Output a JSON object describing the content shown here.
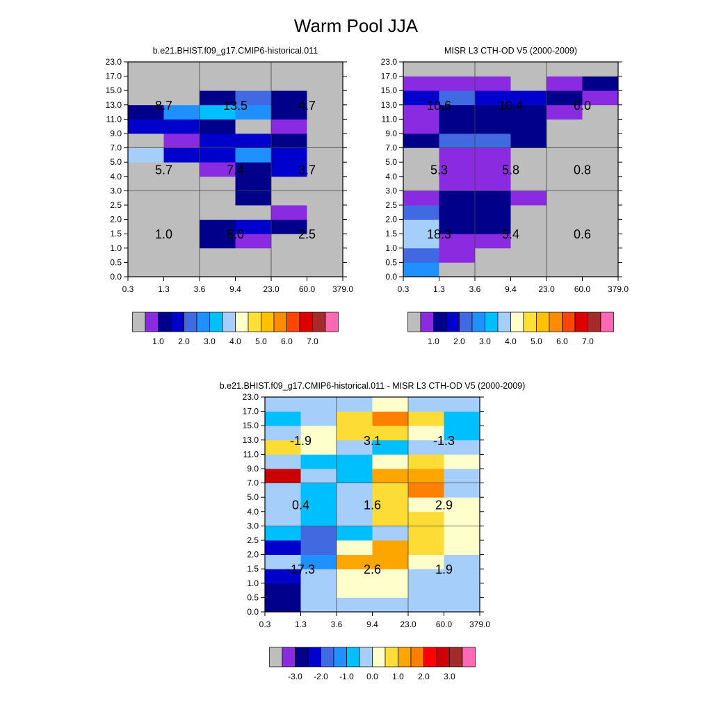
{
  "title": "Warm Pool JJA",
  "palettes": {
    "main": [
      "#bdbdbd",
      "#8a2be2",
      "#00008b",
      "#0000cd",
      "#4169e1",
      "#1e90ff",
      "#00bfff",
      "#a6cefa",
      "#ffffcc",
      "#ffe135",
      "#ffc000",
      "#ff8c00",
      "#ff4500",
      "#dd0000",
      "#a52a2a",
      "#ff69b4"
    ],
    "diff": [
      "#bdbdbd",
      "#8a2be2",
      "#00008b",
      "#0000cd",
      "#4169e1",
      "#1e90ff",
      "#00bfff",
      "#a6cefa",
      "#ffffcc",
      "#fddc35",
      "#ffa500",
      "#ff7f00",
      "#ff0000",
      "#cc0000",
      "#a52a2a",
      "#ff69b4"
    ]
  },
  "chart_data": [
    {
      "type": "heatmap",
      "title": "b.e21.BHIST.f09_g17.CMIP6-historical.011",
      "x_ticks": [
        "0.3",
        "1.3",
        "3.6",
        "9.4",
        "23.0",
        "60.0",
        "379.0"
      ],
      "y_ticks": [
        "0.0",
        "0.5",
        "1.0",
        "1.5",
        "2.0",
        "2.5",
        "3.0",
        "4.0",
        "5.0",
        "7.0",
        "9.0",
        "11.0",
        "13.0",
        "15.0",
        "17.0",
        "23.0"
      ],
      "colorbar_ticks": [
        "1.0",
        "2.0",
        "3.0",
        "4.0",
        "5.0",
        "6.0",
        "7.0"
      ],
      "cells": [
        [
          0,
          0,
          0,
          0,
          0,
          0
        ],
        [
          0,
          0,
          0,
          0,
          0,
          0
        ],
        [
          0,
          0,
          2,
          1,
          0,
          0
        ],
        [
          0,
          0,
          2,
          3,
          2,
          0
        ],
        [
          0,
          0,
          0,
          0,
          1,
          0
        ],
        [
          0,
          0,
          0,
          2,
          0,
          0
        ],
        [
          0,
          0,
          0,
          2,
          0,
          0
        ],
        [
          0,
          0,
          1,
          2,
          3,
          0
        ],
        [
          7,
          3,
          3,
          5,
          3,
          0
        ],
        [
          0,
          1,
          3,
          3,
          2,
          0
        ],
        [
          3,
          3,
          2,
          0,
          1,
          0
        ],
        [
          2,
          5,
          6,
          5,
          2,
          0
        ],
        [
          0,
          0,
          2,
          4,
          2,
          0
        ],
        [
          0,
          0,
          0,
          0,
          0,
          0
        ],
        [
          0,
          0,
          0,
          0,
          0,
          0
        ]
      ],
      "region_labels": [
        {
          "text": "8.7",
          "x": 0.5,
          "y": 12
        },
        {
          "text": "13.5",
          "x": 2.5,
          "y": 12
        },
        {
          "text": "4.7",
          "x": 4.5,
          "y": 12
        },
        {
          "text": "5.7",
          "x": 0.5,
          "y": 7.5
        },
        {
          "text": "7.4",
          "x": 2.5,
          "y": 7.5
        },
        {
          "text": "3.7",
          "x": 4.5,
          "y": 7.5
        },
        {
          "text": "1.0",
          "x": 0.5,
          "y": 3
        },
        {
          "text": "8.0",
          "x": 2.5,
          "y": 3
        },
        {
          "text": "2.5",
          "x": 4.5,
          "y": 3
        }
      ]
    },
    {
      "type": "heatmap",
      "title": "MISR L3 CTH-OD V5 (2000-2009)",
      "x_ticks": [
        "0.3",
        "1.3",
        "3.6",
        "9.4",
        "23.0",
        "60.0",
        "379.0"
      ],
      "y_ticks": [
        "0.0",
        "0.5",
        "1.0",
        "1.5",
        "2.0",
        "2.5",
        "3.0",
        "4.0",
        "5.0",
        "7.0",
        "9.0",
        "11.0",
        "13.0",
        "15.0",
        "17.0",
        "23.0"
      ],
      "colorbar_ticks": [
        "1.0",
        "2.0",
        "3.0",
        "4.0",
        "5.0",
        "6.0",
        "7.0"
      ],
      "cells": [
        [
          5,
          0,
          0,
          0,
          0,
          0
        ],
        [
          4,
          1,
          0,
          0,
          0,
          0
        ],
        [
          7,
          1,
          1,
          0,
          0,
          0
        ],
        [
          7,
          2,
          2,
          0,
          0,
          0
        ],
        [
          4,
          2,
          2,
          0,
          0,
          0
        ],
        [
          1,
          2,
          2,
          1,
          0,
          0
        ],
        [
          0,
          1,
          1,
          0,
          0,
          0
        ],
        [
          0,
          1,
          1,
          0,
          0,
          0
        ],
        [
          0,
          1,
          1,
          0,
          0,
          0
        ],
        [
          2,
          4,
          4,
          2,
          0,
          0
        ],
        [
          1,
          2,
          2,
          2,
          0,
          0
        ],
        [
          1,
          2,
          2,
          2,
          1,
          0
        ],
        [
          3,
          4,
          3,
          3,
          2,
          1
        ],
        [
          1,
          1,
          1,
          0,
          1,
          2
        ],
        [
          0,
          0,
          0,
          0,
          0,
          0
        ]
      ],
      "region_labels": [
        {
          "text": "10.6",
          "x": 0.5,
          "y": 12
        },
        {
          "text": "10.4",
          "x": 2.5,
          "y": 12
        },
        {
          "text": "6.0",
          "x": 4.5,
          "y": 12
        },
        {
          "text": "5.3",
          "x": 0.5,
          "y": 7.5
        },
        {
          "text": "5.8",
          "x": 2.5,
          "y": 7.5
        },
        {
          "text": "0.8",
          "x": 4.5,
          "y": 7.5
        },
        {
          "text": "18.3",
          "x": 0.5,
          "y": 3
        },
        {
          "text": "5.4",
          "x": 2.5,
          "y": 3
        },
        {
          "text": "0.6",
          "x": 4.5,
          "y": 3
        }
      ]
    },
    {
      "type": "heatmap",
      "title": "b.e21.BHIST.f09_g17.CMIP6-historical.011 - MISR L3 CTH-OD V5 (2000-2009)",
      "x_ticks": [
        "0.3",
        "1.3",
        "3.6",
        "9.4",
        "23.0",
        "60.0",
        "379.0"
      ],
      "y_ticks": [
        "0.0",
        "0.5",
        "1.0",
        "1.5",
        "2.0",
        "2.5",
        "3.0",
        "4.0",
        "5.0",
        "7.0",
        "9.0",
        "11.0",
        "13.0",
        "15.0",
        "17.0",
        "23.0"
      ],
      "colorbar_ticks": [
        "-3.0",
        "-2.0",
        "-1.0",
        "0.0",
        "1.0",
        "2.0",
        "3.0"
      ],
      "cells": [
        [
          2,
          7,
          7,
          7,
          7,
          7
        ],
        [
          2,
          7,
          8,
          8,
          7,
          7
        ],
        [
          3,
          7,
          8,
          8,
          7,
          7
        ],
        [
          7,
          5,
          10,
          10,
          8,
          7
        ],
        [
          3,
          4,
          8,
          10,
          9,
          8
        ],
        [
          6,
          4,
          6,
          7,
          9,
          8
        ],
        [
          7,
          6,
          7,
          9,
          9,
          8
        ],
        [
          7,
          6,
          7,
          9,
          8,
          8
        ],
        [
          7,
          6,
          7,
          9,
          11,
          7
        ],
        [
          13,
          7,
          6,
          10,
          10,
          7
        ],
        [
          7,
          6,
          6,
          8,
          9,
          8
        ],
        [
          9,
          8,
          7,
          6,
          7,
          7
        ],
        [
          7,
          8,
          9,
          9,
          8,
          6
        ],
        [
          6,
          7,
          9,
          11,
          9,
          6
        ],
        [
          7,
          7,
          7,
          8,
          7,
          7
        ]
      ],
      "region_labels": [
        {
          "text": "-1.9",
          "x": 0.5,
          "y": 12
        },
        {
          "text": "3.1",
          "x": 2.5,
          "y": 12
        },
        {
          "text": "-1.3",
          "x": 4.5,
          "y": 12
        },
        {
          "text": "0.4",
          "x": 0.5,
          "y": 7.5
        },
        {
          "text": "1.6",
          "x": 2.5,
          "y": 7.5
        },
        {
          "text": "2.9",
          "x": 4.5,
          "y": 7.5
        },
        {
          "text": "-17.3",
          "x": 0.5,
          "y": 3
        },
        {
          "text": "2.6",
          "x": 2.5,
          "y": 3
        },
        {
          "text": "1.9",
          "x": 4.5,
          "y": 3
        }
      ]
    }
  ]
}
